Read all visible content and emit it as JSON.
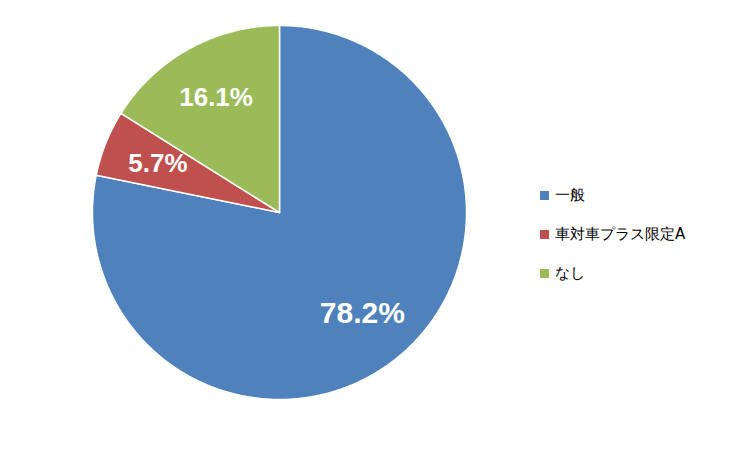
{
  "chart_data": {
    "type": "pie",
    "categories": [
      "一般",
      "車対車プラス限定A",
      "なし"
    ],
    "values": [
      78.2,
      5.7,
      16.1
    ],
    "value_labels": [
      "78.2%",
      "5.7%",
      "16.1%"
    ],
    "colors": [
      "#4f81bd",
      "#c0504d",
      "#9bbb59"
    ],
    "data_labels": true,
    "legend": "right"
  }
}
